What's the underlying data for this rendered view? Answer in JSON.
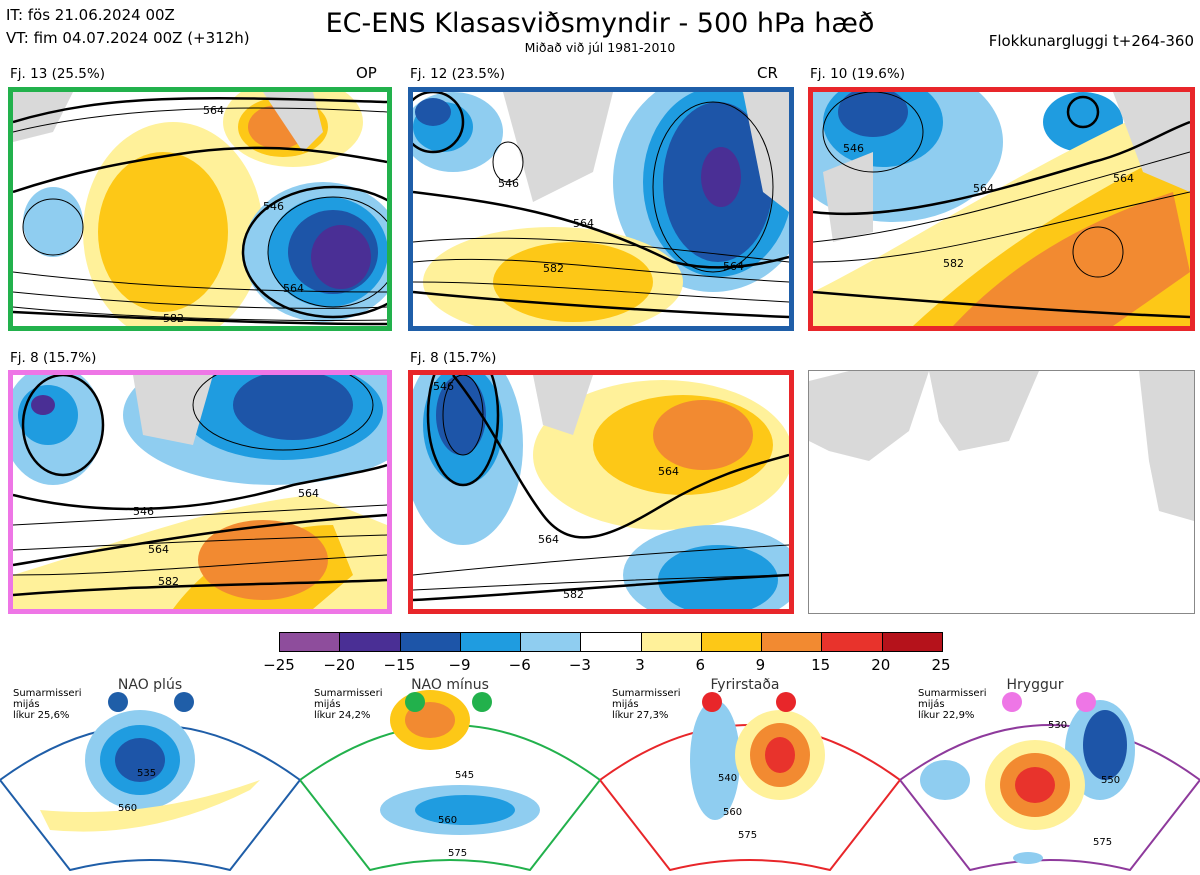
{
  "header": {
    "it": "IT: fös 21.06.2024 00Z",
    "vt": "VT: fim 04.07.2024 00Z  (+312h)",
    "title": "EC-ENS Klasasviðsmyndir - 500 hPa hæð",
    "subtitle": "Miðað við júl 1981-2010",
    "window": "Flokkunargluggi t+264-360"
  },
  "panels": [
    {
      "label": "Fj. 13 (25.5%)",
      "tag": "OP",
      "border": "#22b14c",
      "c1": "564",
      "c2": "546",
      "c3": "564",
      "c4": "582"
    },
    {
      "label": "Fj. 12 (23.5%)",
      "tag": "CR",
      "border": "#1f5ea8",
      "c1": "546",
      "c2": "564",
      "c3": "582",
      "c4": "564"
    },
    {
      "label": "Fj. 10 (19.6%)",
      "tag": "",
      "border": "#e8262a",
      "c1": "546",
      "c2": "564",
      "c3": "582",
      "c4": "564"
    },
    {
      "label": "Fj. 8 (15.7%)",
      "tag": "",
      "border": "#ee76e6",
      "c1": "546",
      "c2": "564",
      "c3": "582",
      "c4": "564"
    },
    {
      "label": "Fj. 8 (15.7%)",
      "tag": "",
      "border": "#e8262a",
      "c1": "546",
      "c2": "564",
      "c3": "582",
      "c4": "564"
    }
  ],
  "colorbar": {
    "colors": [
      "#8e4d9c",
      "#4a2f95",
      "#1d55a8",
      "#1f9ce0",
      "#8fcdf0",
      "#ffffff",
      "#fff19a",
      "#fdc817",
      "#f28a31",
      "#e8332c",
      "#b5121b"
    ],
    "labels": [
      "−25",
      "−20",
      "−15",
      "−9",
      "−6",
      "−3",
      "3",
      "6",
      "9",
      "15",
      "20",
      "25"
    ]
  },
  "regimes": [
    {
      "name": "NAO plús",
      "season": "Sumarmisseri",
      "word": "mijás",
      "prob": "líkur 25,6%",
      "color": "#1f5ea8",
      "c1": "535",
      "c2": "560"
    },
    {
      "name": "NAO mínus",
      "season": "Sumarmisseri",
      "word": "mijás",
      "prob": "líkur 24,2%",
      "color": "#22b14c",
      "c1": "545",
      "c2": "560",
      "c3": "575"
    },
    {
      "name": "Fyrirstaða",
      "season": "Sumarmisseri",
      "word": "mijás",
      "prob": "líkur 27,3%",
      "color": "#e8262a",
      "c1": "540",
      "c2": "560",
      "c3": "575"
    },
    {
      "name": "Hryggur",
      "season": "Sumarmisseri",
      "word": "mijás",
      "prob": "líkur 22,9%",
      "color": "#ee76e6",
      "c1": "530",
      "c2": "550",
      "c3": "575"
    }
  ]
}
